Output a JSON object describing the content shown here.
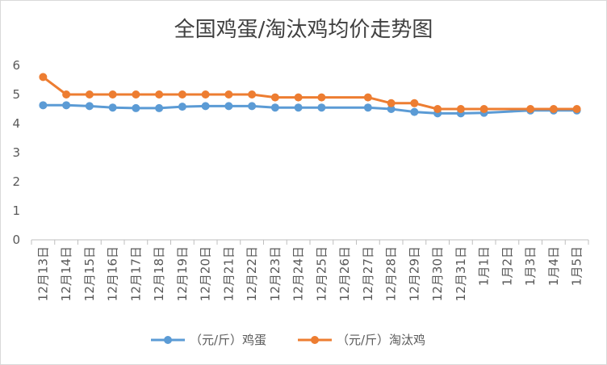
{
  "chart_data": {
    "type": "line",
    "title": "全国鸡蛋/淘汰鸡均价走势图",
    "xlabel": "",
    "ylabel": "",
    "ylim": [
      0,
      6
    ],
    "yticks": [
      0,
      1,
      2,
      3,
      4,
      5,
      6
    ],
    "grid": false,
    "legend_position": "bottom",
    "categories": [
      "12月13日",
      "12月14日",
      "12月15日",
      "12月16日",
      "12月17日",
      "12月18日",
      "12月19日",
      "12月20日",
      "12月21日",
      "12月22日",
      "12月23日",
      "12月24日",
      "12月25日",
      "12月26日",
      "12月27日",
      "12月28日",
      "12月29日",
      "12月30日",
      "12月31日",
      "1月1日",
      "1月2日",
      "1月3日",
      "1月4日",
      "1月5日"
    ],
    "series": [
      {
        "name": "（元/斤）鸡蛋",
        "color": "#5b9bd5",
        "values": [
          4.63,
          4.63,
          4.6,
          4.55,
          4.53,
          4.53,
          4.58,
          4.6,
          4.6,
          4.6,
          4.55,
          4.55,
          4.55,
          null,
          4.55,
          4.5,
          4.4,
          4.35,
          4.35,
          4.37,
          null,
          4.45,
          4.45,
          4.45
        ]
      },
      {
        "name": "（元/斤）淘汰鸡",
        "color": "#ed7d31",
        "values": [
          5.6,
          5.0,
          5.0,
          5.0,
          5.0,
          5.0,
          5.0,
          5.0,
          5.0,
          5.0,
          4.9,
          4.9,
          4.9,
          null,
          4.9,
          4.7,
          4.7,
          4.5,
          4.5,
          4.5,
          null,
          4.5,
          4.5,
          4.5
        ]
      }
    ]
  }
}
